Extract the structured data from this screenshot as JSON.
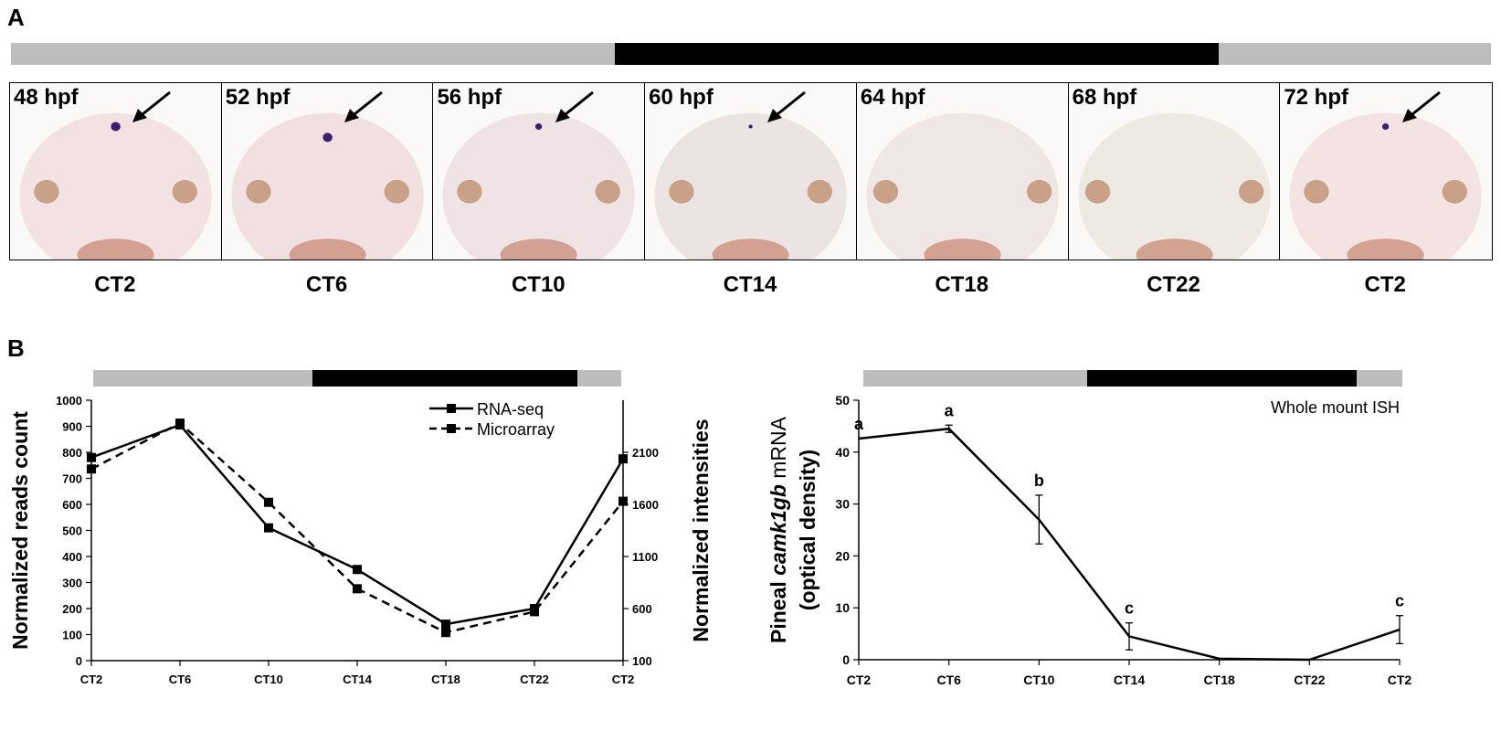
{
  "panel_a": {
    "letter": "A",
    "bar_segments": [
      "light",
      "dark",
      "light"
    ],
    "frames": [
      {
        "hpf": "48 hpf",
        "ct": "CT2",
        "arrow": true,
        "signal": "strong"
      },
      {
        "hpf": "52 hpf",
        "ct": "CT6",
        "arrow": true,
        "signal": "strong"
      },
      {
        "hpf": "56 hpf",
        "ct": "CT10",
        "arrow": true,
        "signal": "medium"
      },
      {
        "hpf": "60 hpf",
        "ct": "CT14",
        "arrow": true,
        "signal": "weak"
      },
      {
        "hpf": "64 hpf",
        "ct": "CT18",
        "arrow": false,
        "signal": "none"
      },
      {
        "hpf": "68 hpf",
        "ct": "CT22",
        "arrow": false,
        "signal": "none"
      },
      {
        "hpf": "72 hpf",
        "ct": "CT2",
        "arrow": true,
        "signal": "medium"
      }
    ]
  },
  "panel_b": {
    "letter": "B"
  },
  "chart_data": [
    {
      "type": "line",
      "categories": [
        "CT2",
        "CT6",
        "CT10",
        "CT14",
        "CT18",
        "CT22",
        "CT2"
      ],
      "ylabel": "Normalized reads count",
      "y2label": "Normalized intensities",
      "ylim": [
        0,
        1000
      ],
      "yticks": [
        0,
        100,
        200,
        300,
        400,
        500,
        600,
        700,
        800,
        900,
        1000
      ],
      "y2lim": [
        100,
        2600
      ],
      "y2ticks": [
        100,
        600,
        1100,
        1600,
        2100
      ],
      "legend_position": "top-right",
      "series": [
        {
          "name": "RNA-seq",
          "axis": "left",
          "style": "solid",
          "values": [
            780,
            905,
            510,
            350,
            140,
            200,
            775
          ]
        },
        {
          "name": "Microarray",
          "axis": "right",
          "style": "dashed",
          "values": [
            1940,
            2380,
            1620,
            790,
            370,
            570,
            1630
          ]
        }
      ]
    },
    {
      "type": "line",
      "categories": [
        "CT2",
        "CT6",
        "CT10",
        "CT14",
        "CT18",
        "CT22",
        "CT2"
      ],
      "ylabel_prefix": "Pineal ",
      "ylabel_gene": "camk1gb",
      "ylabel_suffix": " mRNA",
      "ylabel_line2": "(optical density)",
      "ylim": [
        0,
        50
      ],
      "yticks": [
        0,
        10,
        20,
        30,
        40,
        50
      ],
      "annotation": "Whole mount ISH",
      "series": [
        {
          "values": [
            42.6,
            44.5,
            27.0,
            4.5,
            0.2,
            0.0,
            5.8
          ],
          "errors": [
            0,
            0.7,
            4.7,
            2.6,
            0,
            0,
            2.7
          ],
          "letters": [
            "a",
            "a",
            "b",
            "c",
            "",
            "",
            "c"
          ]
        }
      ]
    }
  ]
}
